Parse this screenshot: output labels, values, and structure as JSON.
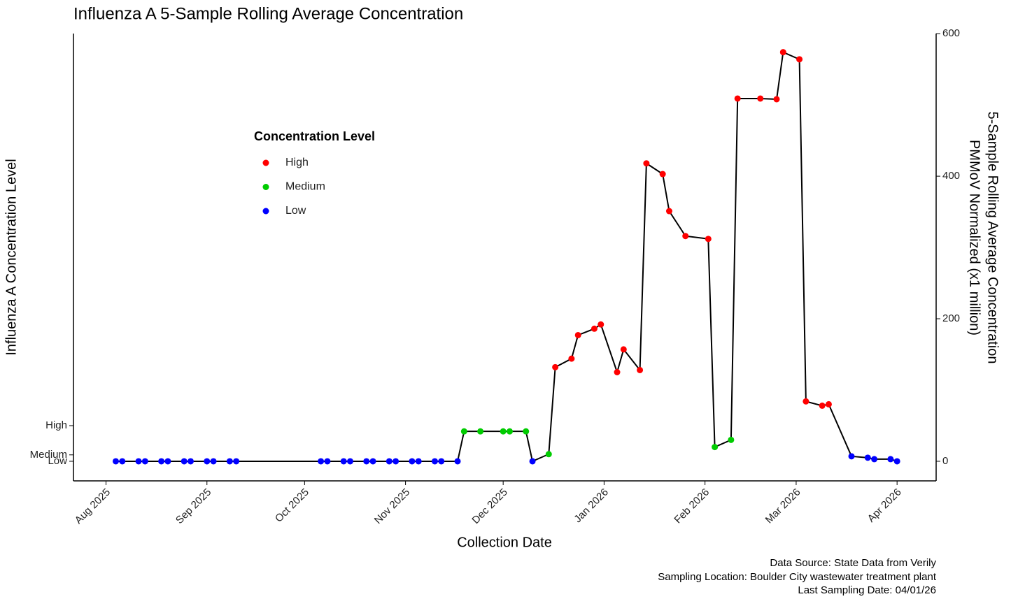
{
  "chart_data": {
    "type": "line",
    "title": "Influenza A 5-Sample Rolling Average Concentration",
    "x_label": "Collection Date",
    "y_label": "Influenza A Concentration Level",
    "y2_label": [
      "5-Sample Rolling Average Concentration",
      "PMMoV Normalized (x1 million)"
    ],
    "captions": [
      "Data Source: State Data from Verily",
      "Sampling Location: Boulder City wastewater treatment plant",
      "Last Sampling Date: 04/01/26"
    ],
    "legend_title": "Concentration Level",
    "series": [
      {
        "name": "High",
        "color": "#ff0000"
      },
      {
        "name": "Medium",
        "color": "#00cc00"
      },
      {
        "name": "Low",
        "color": "#0000ff"
      }
    ],
    "line_color": "#000000",
    "axis": "y2",
    "x": [
      "2025-08-04",
      "2025-08-06",
      "2025-08-11",
      "2025-08-13",
      "2025-08-18",
      "2025-08-20",
      "2025-08-25",
      "2025-08-27",
      "2025-09-01",
      "2025-09-03",
      "2025-09-08",
      "2025-09-10",
      "2025-10-06",
      "2025-10-08",
      "2025-10-13",
      "2025-10-15",
      "2025-10-20",
      "2025-10-22",
      "2025-10-27",
      "2025-10-29",
      "2025-11-03",
      "2025-11-05",
      "2025-11-10",
      "2025-11-12",
      "2025-11-17",
      "2025-11-19",
      "2025-11-24",
      "2025-12-01",
      "2025-12-03",
      "2025-12-08",
      "2025-12-10",
      "2025-12-15",
      "2025-12-17",
      "2025-12-22",
      "2025-12-24",
      "2025-12-29",
      "2025-12-31",
      "2026-01-05",
      "2026-01-07",
      "2026-01-12",
      "2026-01-14",
      "2026-01-19",
      "2026-01-21",
      "2026-01-26",
      "2026-02-02",
      "2026-02-04",
      "2026-02-09",
      "2026-02-11",
      "2026-02-18",
      "2026-02-23",
      "2026-02-25",
      "2026-03-02",
      "2026-03-04",
      "2026-03-09",
      "2026-03-11",
      "2026-03-18",
      "2026-03-23",
      "2026-03-25",
      "2026-03-30",
      "2026-04-01"
    ],
    "values": [
      0,
      0,
      0,
      0,
      0,
      0,
      0,
      0,
      0,
      0,
      0,
      0,
      0,
      0,
      0,
      0,
      0,
      0,
      0,
      0,
      0,
      0,
      0,
      0,
      0,
      42,
      42,
      42,
      42,
      42,
      0,
      10,
      132,
      144,
      177,
      186,
      192,
      125,
      157,
      128,
      418,
      403,
      351,
      316,
      312,
      20,
      30,
      509,
      509,
      508,
      574,
      564,
      84,
      78,
      80,
      7,
      5,
      3,
      3,
      0
    ],
    "levels": [
      "Low",
      "Low",
      "Low",
      "Low",
      "Low",
      "Low",
      "Low",
      "Low",
      "Low",
      "Low",
      "Low",
      "Low",
      "Low",
      "Low",
      "Low",
      "Low",
      "Low",
      "Low",
      "Low",
      "Low",
      "Low",
      "Low",
      "Low",
      "Low",
      "Low",
      "Medium",
      "Medium",
      "Medium",
      "Medium",
      "Medium",
      "Low",
      "Medium",
      "High",
      "High",
      "High",
      "High",
      "High",
      "High",
      "High",
      "High",
      "High",
      "High",
      "High",
      "High",
      "High",
      "Medium",
      "Medium",
      "High",
      "High",
      "High",
      "High",
      "High",
      "High",
      "High",
      "High",
      "Low",
      "Low",
      "Low",
      "Low",
      "Low"
    ],
    "xlim": [
      "2025-07-22",
      "2026-04-13"
    ],
    "xticks": [
      {
        "value": "2025-08-01",
        "label": "Aug 2025"
      },
      {
        "value": "2025-09-01",
        "label": "Sep 2025"
      },
      {
        "value": "2025-10-01",
        "label": "Oct 2025"
      },
      {
        "value": "2025-11-01",
        "label": "Nov 2025"
      },
      {
        "value": "2025-12-01",
        "label": "Dec 2025"
      },
      {
        "value": "2026-01-01",
        "label": "Jan 2026"
      },
      {
        "value": "2026-02-01",
        "label": "Feb 2026"
      },
      {
        "value": "2026-03-01",
        "label": "Mar 2026"
      },
      {
        "value": "2026-04-01",
        "label": "Apr 2026"
      }
    ],
    "ylim": [
      -27.5,
      608
    ],
    "yticks": [
      {
        "value": 0,
        "label": "Low"
      },
      {
        "value": 9,
        "label": "Medium"
      },
      {
        "value": 50,
        "label": "High"
      }
    ],
    "y2lim": [
      -27.5,
      608
    ],
    "y2ticks": [
      0,
      200,
      400,
      600
    ],
    "grid": false
  }
}
